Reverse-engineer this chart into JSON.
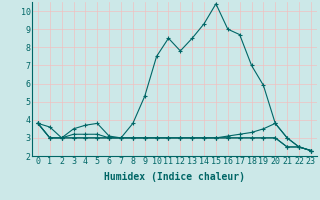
{
  "xlabel": "Humidex (Indice chaleur)",
  "background_color": "#cce8e8",
  "grid_color": "#f0c0c0",
  "line_color": "#006666",
  "xlim": [
    -0.5,
    23.5
  ],
  "ylim": [
    2,
    10.5
  ],
  "x": [
    0,
    1,
    2,
    3,
    4,
    5,
    6,
    7,
    8,
    9,
    10,
    11,
    12,
    13,
    14,
    15,
    16,
    17,
    18,
    19,
    20,
    21,
    22,
    23
  ],
  "series": [
    [
      3.8,
      3.6,
      3.0,
      3.5,
      3.7,
      3.8,
      3.1,
      3.0,
      3.8,
      5.3,
      7.5,
      8.5,
      7.8,
      8.5,
      9.3,
      10.4,
      9.0,
      8.7,
      7.0,
      5.9,
      3.8,
      3.0,
      2.5,
      2.3
    ],
    [
      3.8,
      3.0,
      3.0,
      3.0,
      3.0,
      3.0,
      3.0,
      3.0,
      3.0,
      3.0,
      3.0,
      3.0,
      3.0,
      3.0,
      3.0,
      3.0,
      3.1,
      3.2,
      3.3,
      3.5,
      3.8,
      3.0,
      2.5,
      2.3
    ],
    [
      3.8,
      3.0,
      3.0,
      3.2,
      3.2,
      3.2,
      3.0,
      3.0,
      3.0,
      3.0,
      3.0,
      3.0,
      3.0,
      3.0,
      3.0,
      3.0,
      3.0,
      3.0,
      3.0,
      3.0,
      3.0,
      2.5,
      2.5,
      2.3
    ],
    [
      3.8,
      3.0,
      3.0,
      3.0,
      3.0,
      3.0,
      3.0,
      3.0,
      3.0,
      3.0,
      3.0,
      3.0,
      3.0,
      3.0,
      3.0,
      3.0,
      3.0,
      3.0,
      3.0,
      3.0,
      3.0,
      2.5,
      2.5,
      2.3
    ]
  ],
  "yticks": [
    2,
    3,
    4,
    5,
    6,
    7,
    8,
    9,
    10
  ],
  "xticks": [
    0,
    1,
    2,
    3,
    4,
    5,
    6,
    7,
    8,
    9,
    10,
    11,
    12,
    13,
    14,
    15,
    16,
    17,
    18,
    19,
    20,
    21,
    22,
    23
  ],
  "marker": "+",
  "markersize": 3,
  "linewidth": 0.8,
  "markeredgewidth": 0.8,
  "xlabel_fontsize": 7,
  "tick_fontsize": 6
}
